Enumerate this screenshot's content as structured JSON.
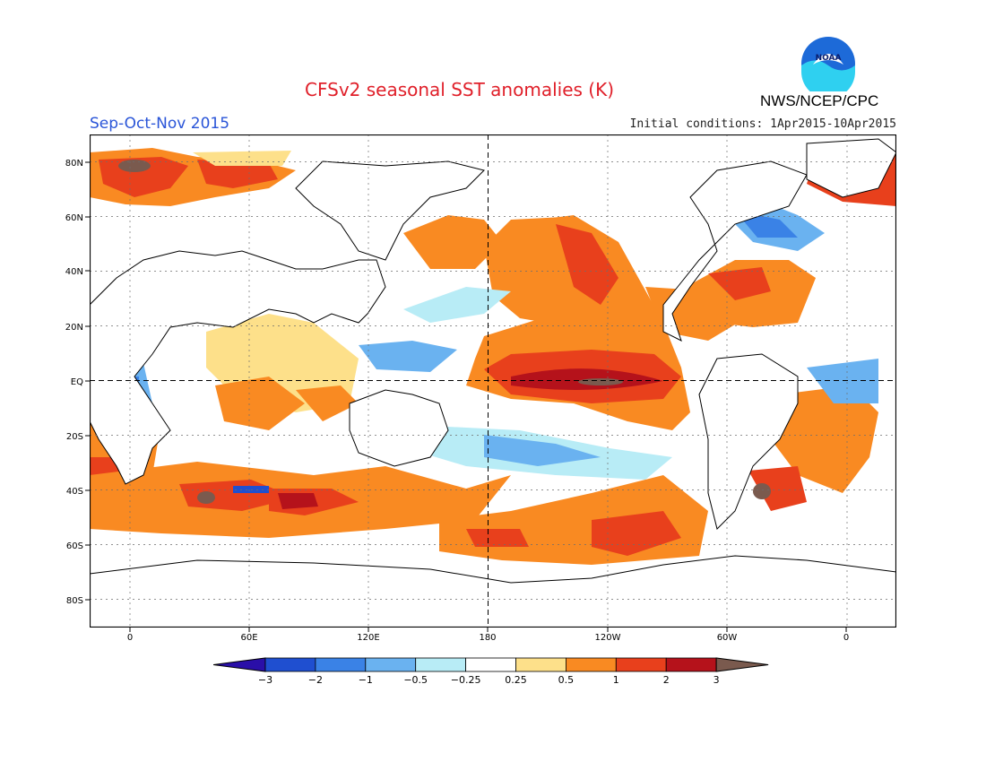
{
  "header": {
    "title": "CFSv2 seasonal SST anomalies (K)",
    "season": "Sep-Oct-Nov 2015",
    "initial_conditions": "Initial conditions: 1Apr2015-10Apr2015",
    "agency": "NWS/NCEP/CPC",
    "logo_text": "NOAA"
  },
  "map": {
    "lat_labels": [
      "80N",
      "60N",
      "40N",
      "20N",
      "EQ",
      "20S",
      "40S",
      "60S",
      "80S"
    ],
    "lon_labels": [
      "0",
      "60E",
      "120E",
      "180",
      "120W",
      "60W",
      "0"
    ],
    "land_color": "#ffffff",
    "grid": "dotted"
  },
  "colorbar": {
    "tick_labels": [
      "-3",
      "-2",
      "-1",
      "-0.5",
      "-0.25",
      "0.25",
      "0.5",
      "1",
      "2",
      "3"
    ],
    "colors": [
      "#2a0fa8",
      "#1f4fd0",
      "#3a82e6",
      "#6ab2f0",
      "#b8ecf6",
      "#ffffff",
      "#fde08a",
      "#f98a22",
      "#e8401c",
      "#b5121b",
      "#7a5a4e"
    ]
  }
}
